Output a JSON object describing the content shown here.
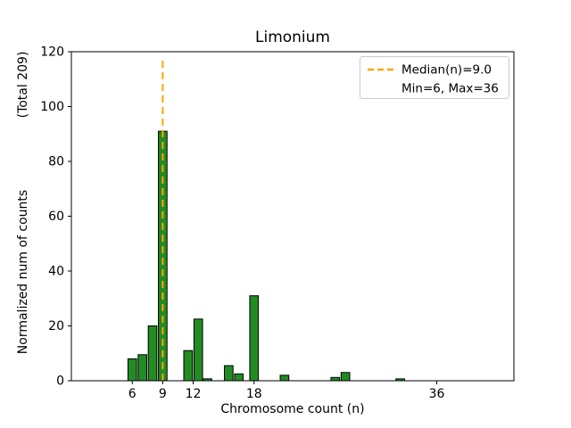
{
  "chart_data": {
    "type": "bar",
    "title": "Limonium",
    "xlabel": "Chromosome count (n)",
    "ylabel": "Normalized num of counts",
    "ylabel2": "(Total 209)",
    "xlim": [
      0,
      43.6
    ],
    "ylim": [
      0,
      120
    ],
    "xticks": [
      6,
      9,
      12,
      18,
      36
    ],
    "yticks": [
      0,
      20,
      40,
      60,
      80,
      100,
      120
    ],
    "bar_color": "#228B22",
    "bar_edge_color": "#000000",
    "bar_width": 0.85,
    "bars": [
      {
        "x": 6,
        "value": 8
      },
      {
        "x": 7,
        "value": 9.5
      },
      {
        "x": 8,
        "value": 20
      },
      {
        "x": 9,
        "value": 91
      },
      {
        "x": 11.5,
        "value": 11
      },
      {
        "x": 12.5,
        "value": 22.5
      },
      {
        "x": 13.4,
        "value": 0.7
      },
      {
        "x": 15.5,
        "value": 5.5
      },
      {
        "x": 16.5,
        "value": 2.5
      },
      {
        "x": 18,
        "value": 31
      },
      {
        "x": 21,
        "value": 2
      },
      {
        "x": 26,
        "value": 1.2
      },
      {
        "x": 27,
        "value": 3
      },
      {
        "x": 32.4,
        "value": 0.7
      }
    ],
    "median_line": {
      "x": 9,
      "top_value": 117.5,
      "color": "#FFA500",
      "style": "dashed"
    },
    "legend": {
      "entries": [
        {
          "label": "Median(n)=9.0",
          "marker": "dashed-orange-line"
        },
        {
          "label": "Min=6, Max=36",
          "marker": "none"
        }
      ],
      "position": "upper right"
    },
    "grid": false,
    "total_counts": 209,
    "min_n": 6,
    "max_n": 36,
    "median_n": 9.0
  }
}
